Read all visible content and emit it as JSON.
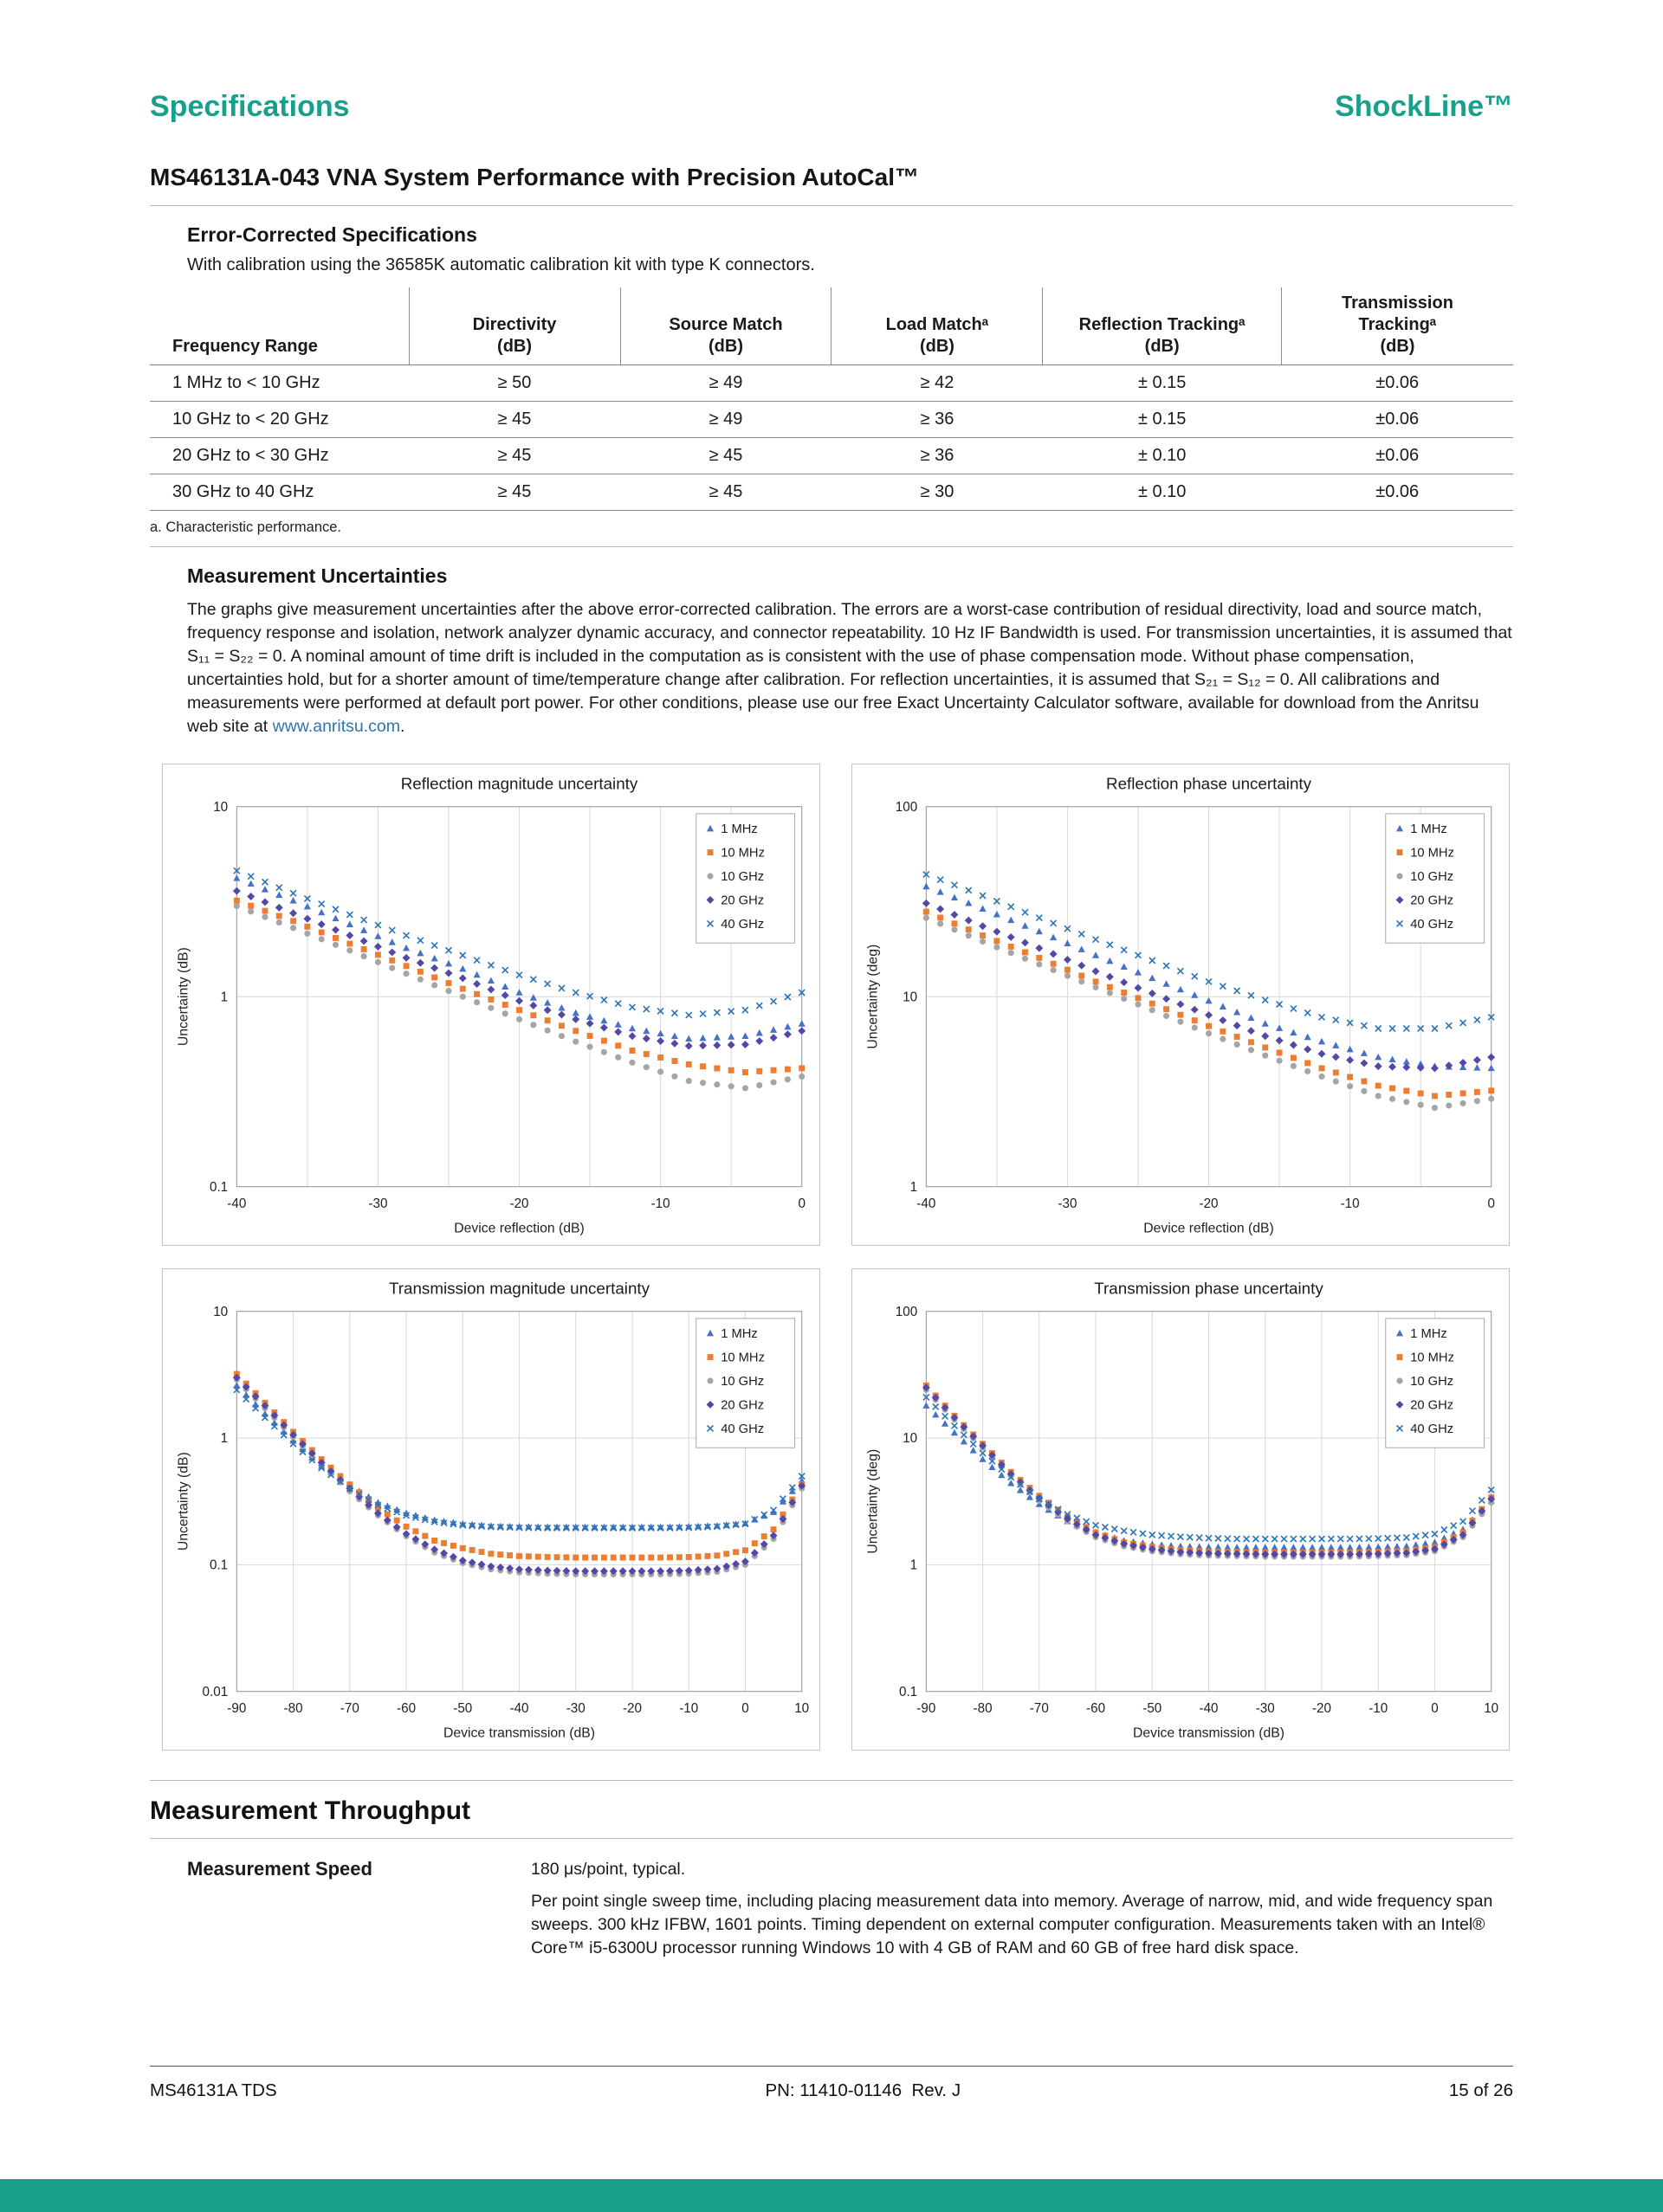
{
  "page": {
    "header_left": "Specifications",
    "header_right": "ShockLine™",
    "title": "MS46131A-043 VNA System Performance with Precision AutoCal™",
    "accent_color": "#18a08c",
    "link_color": "#2e74b5"
  },
  "error_corrected": {
    "heading": "Error-Corrected Specifications",
    "intro": "With calibration using the 36585K automatic calibration kit with type K connectors.",
    "table": {
      "col_headers": [
        "Frequency Range",
        "Directivity\n(dB)",
        "Source Match\n(dB)",
        "Load Matchᵃ\n(dB)",
        "Reflection Trackingᵃ\n(dB)",
        "Transmission\nTrackingᵃ\n(dB)"
      ],
      "rows": [
        [
          "1 MHz to < 10 GHz",
          "≥ 50",
          "≥ 49",
          "≥ 42",
          "± 0.15",
          "±0.06"
        ],
        [
          "10 GHz to < 20 GHz",
          "≥ 45",
          "≥ 49",
          "≥ 36",
          "± 0.15",
          "±0.06"
        ],
        [
          "20 GHz to < 30 GHz",
          "≥ 45",
          "≥ 45",
          "≥ 36",
          "± 0.10",
          "±0.06"
        ],
        [
          "30 GHz to 40 GHz",
          "≥ 45",
          "≥ 45",
          "≥ 30",
          "± 0.10",
          "±0.06"
        ]
      ]
    },
    "footnote": "a. Characteristic performance."
  },
  "measurement_uncertainties": {
    "heading": "Measurement Uncertainties",
    "body_before_link": "The graphs give measurement uncertainties after the above error-corrected calibration. The errors are a worst-case contribution of residual directivity, load and source match, frequency response and isolation, network analyzer dynamic accuracy, and connector repeatability. 10 Hz IF Bandwidth is used. For transmission uncertainties, it is assumed that S₁₁ = S₂₂ = 0. A nominal amount of time drift is included in the computation as is consistent with the use of phase compensation mode. Without phase compensation, uncertainties hold, but for a shorter amount of time/temperature change after calibration. For reflection uncertainties, it is assumed that S₂₁ = S₁₂ = 0. All calibrations and measurements were performed at default port power. For other conditions, please use our free Exact Uncertainty Calculator software, available for download from the Anritsu web site at ",
    "link_text": "www.anritsu.com",
    "body_after_link": "."
  },
  "throughput": {
    "heading": "Measurement Throughput",
    "speed_label": "Measurement Speed",
    "speed_value": "180 μs/point, typical.",
    "speed_note": "Per point single sweep time, including placing measurement data into memory. Average of narrow, mid, and wide frequency span sweeps. 300 kHz IFBW, 1601 points. Timing dependent on external computer configuration. Measurements taken with an Intel® Core™ i5-6300U processor running Windows 10 with 4 GB of RAM and 60 GB of free hard disk space."
  },
  "footer": {
    "left": "MS46131A TDS",
    "center": "PN: 11410-01146  Rev. J",
    "right": "15 of 26"
  },
  "chart_data": [
    {
      "type": "scatter",
      "title": "Reflection magnitude uncertainty",
      "xlabel": "Device reflection (dB)",
      "ylabel": "Uncertainty (dB)",
      "xmin": -40,
      "xmax": 0,
      "grid_step": 5,
      "label_step": 10,
      "ymin": 0.1,
      "ymax": 10,
      "subdiv": 4,
      "legend_position": "top-right",
      "grid": true,
      "x": [
        -40,
        -36,
        -32,
        -28,
        -24,
        -20,
        -16,
        -12,
        -8,
        -4,
        0
      ],
      "series": [
        {
          "name": "1 MHz",
          "marker": "triangle",
          "color": "#4472C4",
          "values": [
            4.2,
            3.2,
            2.4,
            1.8,
            1.4,
            1.05,
            0.82,
            0.68,
            0.6,
            0.62,
            0.72
          ]
        },
        {
          "name": "10 MHz",
          "marker": "square",
          "color": "#ED7D31",
          "values": [
            3.2,
            2.5,
            1.9,
            1.45,
            1.1,
            0.85,
            0.66,
            0.52,
            0.44,
            0.4,
            0.42
          ]
        },
        {
          "name": "10 GHz",
          "marker": "circle",
          "color": "#A5A5A5",
          "values": [
            3.0,
            2.3,
            1.75,
            1.32,
            1.0,
            0.76,
            0.58,
            0.45,
            0.36,
            0.33,
            0.38
          ]
        },
        {
          "name": "20 GHz",
          "marker": "diamond",
          "color": "#5348A8",
          "values": [
            3.6,
            2.75,
            2.1,
            1.6,
            1.25,
            0.95,
            0.76,
            0.62,
            0.55,
            0.56,
            0.66
          ]
        },
        {
          "name": "40 GHz",
          "marker": "x",
          "color": "#2E75B6",
          "values": [
            4.6,
            3.5,
            2.7,
            2.1,
            1.65,
            1.3,
            1.05,
            0.88,
            0.8,
            0.85,
            1.05
          ]
        }
      ]
    },
    {
      "type": "scatter",
      "title": "Reflection phase uncertainty",
      "xlabel": "Device reflection (dB)",
      "ylabel": "Uncertainty (deg)",
      "xmin": -40,
      "xmax": 0,
      "grid_step": 5,
      "label_step": 10,
      "ymin": 1,
      "ymax": 100,
      "subdiv": 4,
      "legend_position": "top-right",
      "grid": true,
      "x": [
        -40,
        -36,
        -32,
        -28,
        -24,
        -20,
        -16,
        -12,
        -8,
        -4,
        0
      ],
      "series": [
        {
          "name": "1 MHz",
          "marker": "triangle",
          "color": "#4472C4",
          "values": [
            38,
            29,
            22,
            16.5,
            12.5,
            9.5,
            7.2,
            5.8,
            4.8,
            4.3,
            4.2
          ]
        },
        {
          "name": "10 MHz",
          "marker": "square",
          "color": "#ED7D31",
          "values": [
            28,
            21,
            16,
            12,
            9.2,
            7.0,
            5.4,
            4.2,
            3.4,
            3.0,
            3.2
          ]
        },
        {
          "name": "10 GHz",
          "marker": "circle",
          "color": "#A5A5A5",
          "values": [
            26,
            19.5,
            14.8,
            11.2,
            8.5,
            6.4,
            4.9,
            3.8,
            3.0,
            2.6,
            2.9
          ]
        },
        {
          "name": "20 GHz",
          "marker": "diamond",
          "color": "#5348A8",
          "values": [
            31,
            23.5,
            18,
            13.6,
            10.4,
            8.0,
            6.2,
            5.0,
            4.3,
            4.2,
            4.8
          ]
        },
        {
          "name": "40 GHz",
          "marker": "x",
          "color": "#2E75B6",
          "values": [
            44,
            34,
            26,
            20,
            15.5,
            12,
            9.6,
            7.8,
            6.8,
            6.8,
            7.8
          ]
        }
      ]
    },
    {
      "type": "scatter",
      "title": "Transmission magnitude uncertainty",
      "xlabel": "Device transmission (dB)",
      "ylabel": "Uncertainty (dB)",
      "xmin": -90,
      "xmax": 10,
      "grid_step": 10,
      "label_step": 10,
      "ymin": 0.01,
      "ymax": 10,
      "subdiv": 3,
      "legend_position": "top-right",
      "grid": true,
      "x": [
        -90,
        -85,
        -80,
        -75,
        -70,
        -65,
        -60,
        -55,
        -50,
        -45,
        -40,
        -35,
        -30,
        -25,
        -20,
        -15,
        -10,
        -5,
        0,
        5,
        10
      ],
      "series": [
        {
          "name": "1 MHz",
          "marker": "triangle",
          "color": "#4472C4",
          "values": [
            2.6,
            1.55,
            0.95,
            0.6,
            0.42,
            0.31,
            0.255,
            0.225,
            0.21,
            0.202,
            0.2,
            0.198,
            0.198,
            0.198,
            0.198,
            0.198,
            0.2,
            0.203,
            0.212,
            0.26,
            0.46
          ]
        },
        {
          "name": "10 MHz",
          "marker": "square",
          "color": "#ED7D31",
          "values": [
            3.2,
            1.9,
            1.12,
            0.68,
            0.43,
            0.28,
            0.2,
            0.155,
            0.135,
            0.122,
            0.117,
            0.115,
            0.114,
            0.114,
            0.114,
            0.114,
            0.115,
            0.118,
            0.13,
            0.19,
            0.43
          ]
        },
        {
          "name": "10 GHz",
          "marker": "circle",
          "color": "#A5A5A5",
          "values": [
            2.9,
            1.72,
            1.02,
            0.62,
            0.38,
            0.245,
            0.168,
            0.125,
            0.103,
            0.092,
            0.087,
            0.085,
            0.084,
            0.084,
            0.084,
            0.084,
            0.085,
            0.088,
            0.1,
            0.16,
            0.4
          ]
        },
        {
          "name": "20 GHz",
          "marker": "diamond",
          "color": "#5348A8",
          "values": [
            3.0,
            1.8,
            1.06,
            0.64,
            0.4,
            0.255,
            0.175,
            0.132,
            0.108,
            0.097,
            0.092,
            0.09,
            0.089,
            0.089,
            0.089,
            0.089,
            0.09,
            0.093,
            0.106,
            0.17,
            0.42
          ]
        },
        {
          "name": "40 GHz",
          "marker": "x",
          "color": "#2E75B6",
          "values": [
            2.4,
            1.45,
            0.9,
            0.58,
            0.4,
            0.295,
            0.245,
            0.218,
            0.205,
            0.199,
            0.196,
            0.195,
            0.195,
            0.195,
            0.195,
            0.195,
            0.196,
            0.2,
            0.21,
            0.27,
            0.5
          ]
        }
      ]
    },
    {
      "type": "scatter",
      "title": "Transmission phase uncertainty",
      "xlabel": "Device transmission (dB)",
      "ylabel": "Uncertainty (deg)",
      "xmin": -90,
      "xmax": 10,
      "grid_step": 10,
      "label_step": 10,
      "ymin": 0.1,
      "ymax": 100,
      "subdiv": 3,
      "legend_position": "top-right",
      "grid": true,
      "x": [
        -90,
        -85,
        -80,
        -75,
        -70,
        -65,
        -60,
        -55,
        -50,
        -45,
        -40,
        -35,
        -30,
        -25,
        -20,
        -15,
        -10,
        -5,
        0,
        5,
        10
      ],
      "series": [
        {
          "name": "1 MHz",
          "marker": "triangle",
          "color": "#4472C4",
          "values": [
            18,
            11,
            6.8,
            4.4,
            3.0,
            2.2,
            1.8,
            1.55,
            1.45,
            1.4,
            1.38,
            1.37,
            1.37,
            1.37,
            1.37,
            1.37,
            1.38,
            1.4,
            1.5,
            1.9,
            3.2
          ]
        },
        {
          "name": "10 MHz",
          "marker": "square",
          "color": "#ED7D31",
          "values": [
            26,
            15,
            9.0,
            5.4,
            3.5,
            2.4,
            1.8,
            1.5,
            1.38,
            1.3,
            1.27,
            1.26,
            1.25,
            1.25,
            1.25,
            1.25,
            1.26,
            1.28,
            1.38,
            1.8,
            3.4
          ]
        },
        {
          "name": "10 GHz",
          "marker": "circle",
          "color": "#A5A5A5",
          "values": [
            24,
            14,
            8.4,
            5.0,
            3.2,
            2.2,
            1.65,
            1.4,
            1.28,
            1.21,
            1.18,
            1.17,
            1.16,
            1.16,
            1.16,
            1.16,
            1.17,
            1.19,
            1.28,
            1.65,
            3.1
          ]
        },
        {
          "name": "20 GHz",
          "marker": "diamond",
          "color": "#5348A8",
          "values": [
            25,
            14.5,
            8.7,
            5.2,
            3.35,
            2.3,
            1.72,
            1.46,
            1.33,
            1.26,
            1.23,
            1.22,
            1.21,
            1.21,
            1.21,
            1.21,
            1.22,
            1.24,
            1.33,
            1.72,
            3.3
          ]
        },
        {
          "name": "40 GHz",
          "marker": "x",
          "color": "#2E75B6",
          "values": [
            21,
            12.5,
            7.6,
            4.9,
            3.3,
            2.5,
            2.05,
            1.85,
            1.72,
            1.66,
            1.62,
            1.6,
            1.6,
            1.6,
            1.6,
            1.6,
            1.61,
            1.64,
            1.75,
            2.2,
            3.9
          ]
        }
      ]
    }
  ]
}
